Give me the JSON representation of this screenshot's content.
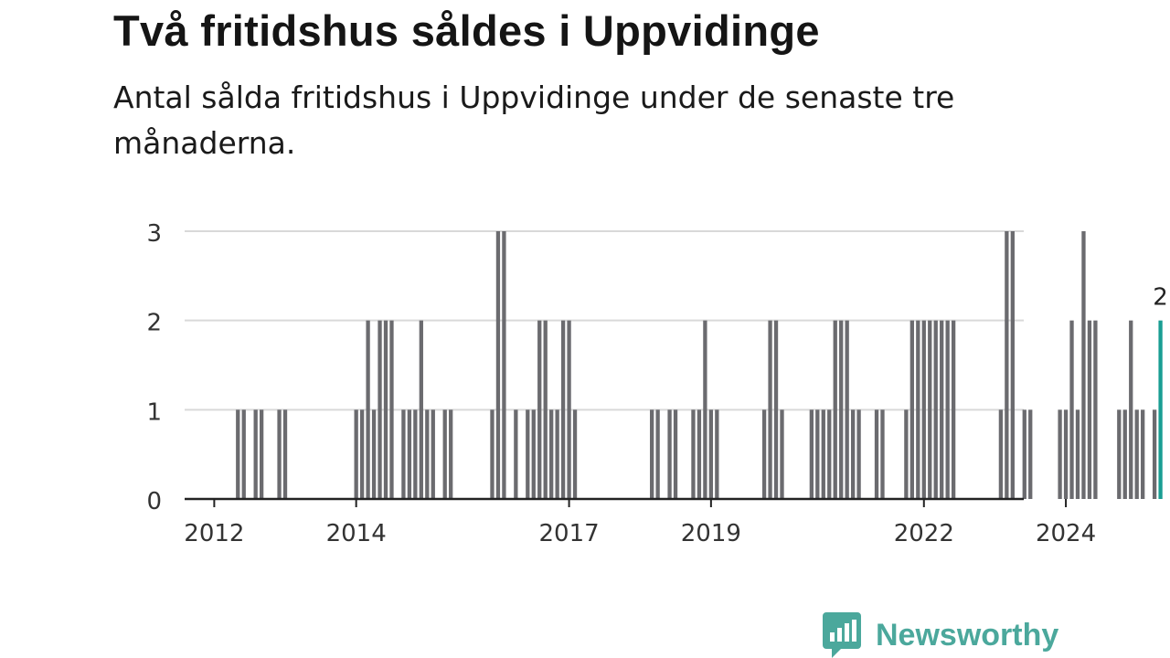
{
  "title": "Två fritidshus såldes i Uppvidinge",
  "subtitle": "Antal sålda fritidshus i Uppvidinge under de senaste tre månaderna.",
  "brand": "Newsworthy",
  "colors": {
    "bar": "#6b6b6f",
    "highlight": "#1a9e93",
    "grid": "#d9d9d9",
    "axis": "#222222",
    "brand": "#4ba89c"
  },
  "chart_data": {
    "type": "bar",
    "ylim": [
      0,
      3
    ],
    "yticks": [
      0,
      1,
      2,
      3
    ],
    "xlabels": [
      "2012",
      "2014",
      "2017",
      "2019",
      "2022",
      "2024"
    ],
    "grid": true,
    "series_start": "2011-09",
    "values": [
      0,
      0,
      0,
      0,
      0,
      0,
      0,
      0,
      1,
      1,
      0,
      1,
      1,
      0,
      0,
      1,
      1,
      0,
      0,
      0,
      0,
      0,
      0,
      0,
      0,
      0,
      0,
      0,
      1,
      1,
      2,
      1,
      2,
      2,
      2,
      0,
      1,
      1,
      1,
      2,
      1,
      1,
      0,
      1,
      1,
      0,
      0,
      0,
      0,
      0,
      0,
      1,
      3,
      3,
      0,
      1,
      0,
      1,
      1,
      2,
      2,
      1,
      1,
      2,
      2,
      1,
      0,
      0,
      0,
      0,
      0,
      0,
      0,
      0,
      0,
      0,
      0,
      0,
      1,
      1,
      0,
      1,
      1,
      0,
      0,
      1,
      1,
      2,
      1,
      1,
      0,
      0,
      0,
      0,
      0,
      0,
      0,
      1,
      2,
      2,
      1,
      0,
      0,
      0,
      0,
      1,
      1,
      1,
      1,
      2,
      2,
      2,
      1,
      1,
      0,
      0,
      1,
      1,
      0,
      0,
      0,
      1,
      2,
      2,
      2,
      2,
      2,
      2,
      2,
      2,
      0,
      0,
      0,
      0,
      0,
      0,
      0,
      1,
      3,
      3,
      0,
      1,
      1,
      0,
      0,
      0,
      0,
      1,
      1,
      2,
      1,
      3,
      2,
      2,
      0,
      0,
      0,
      1,
      1,
      2,
      1,
      1,
      0,
      1,
      2
    ],
    "highlight_label": "2"
  }
}
